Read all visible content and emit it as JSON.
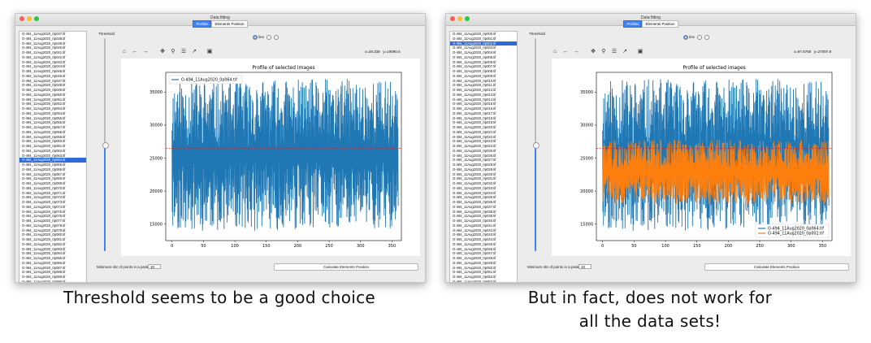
{
  "window": {
    "title": "Data fitting",
    "tabs": [
      "Profiles",
      "Elements Position"
    ],
    "threshold_label": "Threshold",
    "radio_labels": [
      "line",
      "",
      ""
    ],
    "min_points_label": "Minimum nbr of points in a peak:",
    "min_points_value": "10",
    "calc_button": "Calculate Elements Position",
    "toolbar_icons": [
      "home-icon",
      "back-arrow-icon",
      "forward-arrow-icon",
      "pan-icon",
      "zoom-icon",
      "configure-icon",
      "edit-curve-icon",
      "save-icon"
    ],
    "toolbar_glyphs": [
      "⌂",
      "←",
      "→",
      "✥",
      "⚲",
      "☰",
      "↗",
      "▣"
    ]
  },
  "left_panel": {
    "coords": {
      "x": "x=28.339",
      "y": "y=19090.6"
    },
    "file_items": [
      "O-494_11Aug2020_0p037.tif",
      "O-494_11Aug2020_0p038.tif",
      "O-494_11Aug2020_0p039.tif",
      "O-494_11Aug2020_0p040.tif",
      "O-494_11Aug2020_0p041.tif",
      "O-494_11Aug2020_0p042.tif",
      "O-494_11Aug2020_0p043.tif",
      "O-494_11Aug2020_0p044.tif",
      "O-494_11Aug2020_0p045.tif",
      "O-494_11Aug2020_0p046.tif",
      "O-494_11Aug2020_0p047.tif",
      "O-494_11Aug2020_0p048.tif",
      "O-494_11Aug2020_0p049.tif",
      "O-494_11Aug2020_0p050.tif",
      "O-494_11Aug2020_0p051.tif",
      "O-494_11Aug2020_0p052.tif",
      "O-494_11Aug2020_0p053.tif",
      "O-494_11Aug2020_0p054.tif",
      "O-494_11Aug2020_0p055.tif",
      "O-494_11Aug2020_0p056.tif",
      "O-494_11Aug2020_0p057.tif",
      "O-494_11Aug2020_0p058.tif",
      "O-494_11Aug2020_0p059.tif",
      "O-494_11Aug2020_0p060.tif",
      "O-494_11Aug2020_0p061.tif",
      "O-494_11Aug2020_0p062.tif",
      "O-494_11Aug2020_0p063.tif",
      "O-494_11Aug2020_0p064.tif",
      "O-494_11Aug2020_0p065.tif",
      "O-494_11Aug2020_0p066.tif",
      "O-494_11Aug2020_0p067.tif",
      "O-494_11Aug2020_0p068.tif",
      "O-494_11Aug2020_0p069.tif",
      "O-494_11Aug2020_0p070.tif",
      "O-494_11Aug2020_0p071.tif",
      "O-494_11Aug2020_0p072.tif",
      "O-494_11Aug2020_0p073.tif",
      "O-494_11Aug2020_0p074.tif",
      "O-494_11Aug2020_0p075.tif",
      "O-494_11Aug2020_0p076.tif",
      "O-494_11Aug2020_0p077.tif",
      "O-494_11Aug2020_0p078.tif",
      "O-494_11Aug2020_0p079.tif",
      "O-494_11Aug2020_0p080.tif",
      "O-494_11Aug2020_0p081.tif",
      "O-494_11Aug2020_0p082.tif",
      "O-494_11Aug2020_0p083.tif",
      "O-494_11Aug2020_0p084.tif",
      "O-494_11Aug2020_0p085.tif",
      "O-494_11Aug2020_0p086.tif",
      "O-494_11Aug2020_0p087.tif",
      "O-494_11Aug2020_0p088.tif",
      "O-494_11Aug2020_0p089.tif",
      "O-494_11Aug2020_0p090.tif",
      "O-494_11Aug2020_0p091.tif"
    ],
    "selected_index": 27,
    "threshold_level": 0.5,
    "caption": "Threshold seems to be a good choice"
  },
  "right_panel": {
    "coords": {
      "x": "x=97.5768",
      "y": "y=27097.8"
    },
    "file_items": [
      "O-494_11Aug2020_0p000.tif",
      "O-494_11Aug2020_0p001.tif",
      "O-494_11Aug2020_0p002.tif",
      "O-494_11Aug2020_0p003.tif",
      "O-494_11Aug2020_0p004.tif",
      "O-494_11Aug2020_0p005.tif",
      "O-494_11Aug2020_0p006.tif",
      "O-494_11Aug2020_0p007.tif",
      "O-494_11Aug2020_0p008.tif",
      "O-494_11Aug2020_0p009.tif",
      "O-494_11Aug2020_0p010.tif",
      "O-494_11Aug2020_0p011.tif",
      "O-494_11Aug2020_0p012.tif",
      "O-494_11Aug2020_0p013.tif",
      "O-494_11Aug2020_0p014.tif",
      "O-494_11Aug2020_0p015.tif",
      "O-494_11Aug2020_0p016.tif",
      "O-494_11Aug2020_0p017.tif",
      "O-494_11Aug2020_0p018.tif",
      "O-494_11Aug2020_0p019.tif",
      "O-494_11Aug2020_0p020.tif",
      "O-494_11Aug2020_0p021.tif",
      "O-494_11Aug2020_0p022.tif",
      "O-494_11Aug2020_0p023.tif",
      "O-494_11Aug2020_0p024.tif",
      "O-494_11Aug2020_0p025.tif",
      "O-494_11Aug2020_0p026.tif",
      "O-494_11Aug2020_0p027.tif",
      "O-494_11Aug2020_0p028.tif",
      "O-494_11Aug2020_0p029.tif",
      "O-494_11Aug2020_0p030.tif",
      "O-494_11Aug2020_0p031.tif",
      "O-494_11Aug2020_0p032.tif",
      "O-494_11Aug2020_0p033.tif",
      "O-494_11Aug2020_0p034.tif",
      "O-494_11Aug2020_0p035.tif",
      "O-494_11Aug2020_0p036.tif",
      "O-494_11Aug2020_0p037.tif",
      "O-494_11Aug2020_0p038.tif",
      "O-494_11Aug2020_0p039.tif",
      "O-494_11Aug2020_0p040.tif",
      "O-494_11Aug2020_0p041.tif",
      "O-494_11Aug2020_0p042.tif",
      "O-494_11Aug2020_0p043.tif",
      "O-494_11Aug2020_0p044.tif",
      "O-494_11Aug2020_0p045.tif",
      "O-494_11Aug2020_0p046.tif",
      "O-494_11Aug2020_0p047.tif",
      "O-494_11Aug2020_0p048.tif",
      "O-494_11Aug2020_0p049.tif",
      "O-494_11Aug2020_0p050.tif",
      "O-494_11Aug2020_0p051.tif",
      "O-494_11Aug2020_0p052.tif",
      "O-494_11Aug2020_0p053.tif",
      "O-494_11Aug2020_0p054.tif"
    ],
    "selected_index": 2,
    "threshold_level": 0.5,
    "caption_line1": "But in fact, does not work for",
    "caption_line2": "all the data sets!"
  },
  "chart_data": [
    {
      "type": "line",
      "title": "Profile of selected images",
      "xlim": [
        -10,
        365
      ],
      "ylim": [
        12500,
        38000
      ],
      "x_ticks": [
        0,
        50,
        100,
        150,
        200,
        250,
        300,
        350
      ],
      "y_ticks": [
        15000,
        20000,
        25000,
        30000,
        35000
      ],
      "threshold": 26500,
      "legend_position": "top-left",
      "series": [
        {
          "name": "O-494_11Aug2020_0p064.tif",
          "color": "#1f77b4",
          "range": [
            0,
            360
          ],
          "low": 14000,
          "high": 37000
        }
      ]
    },
    {
      "type": "line",
      "title": "Profile of selected images",
      "xlim": [
        -10,
        365
      ],
      "ylim": [
        12500,
        38000
      ],
      "x_ticks": [
        0,
        50,
        100,
        150,
        200,
        250,
        300,
        350
      ],
      "y_ticks": [
        15000,
        20000,
        25000,
        30000,
        35000
      ],
      "threshold": 26500,
      "legend_position": "bottom-right",
      "series": [
        {
          "name": "O-494_11Aug2020_0p064.tif",
          "color": "#1f77b4",
          "range": [
            0,
            360
          ],
          "low": 14000,
          "high": 37000
        },
        {
          "name": "O-494_11Aug2020_0p002.tif",
          "color": "#ff7f0e",
          "range": [
            0,
            360
          ],
          "low": 18000,
          "high": 27800
        }
      ]
    }
  ],
  "colors": {
    "series_blue": "#1f77b4",
    "series_orange": "#ff7f0e",
    "threshold_red": "#d62728",
    "selection_blue": "#2f6bd8"
  }
}
